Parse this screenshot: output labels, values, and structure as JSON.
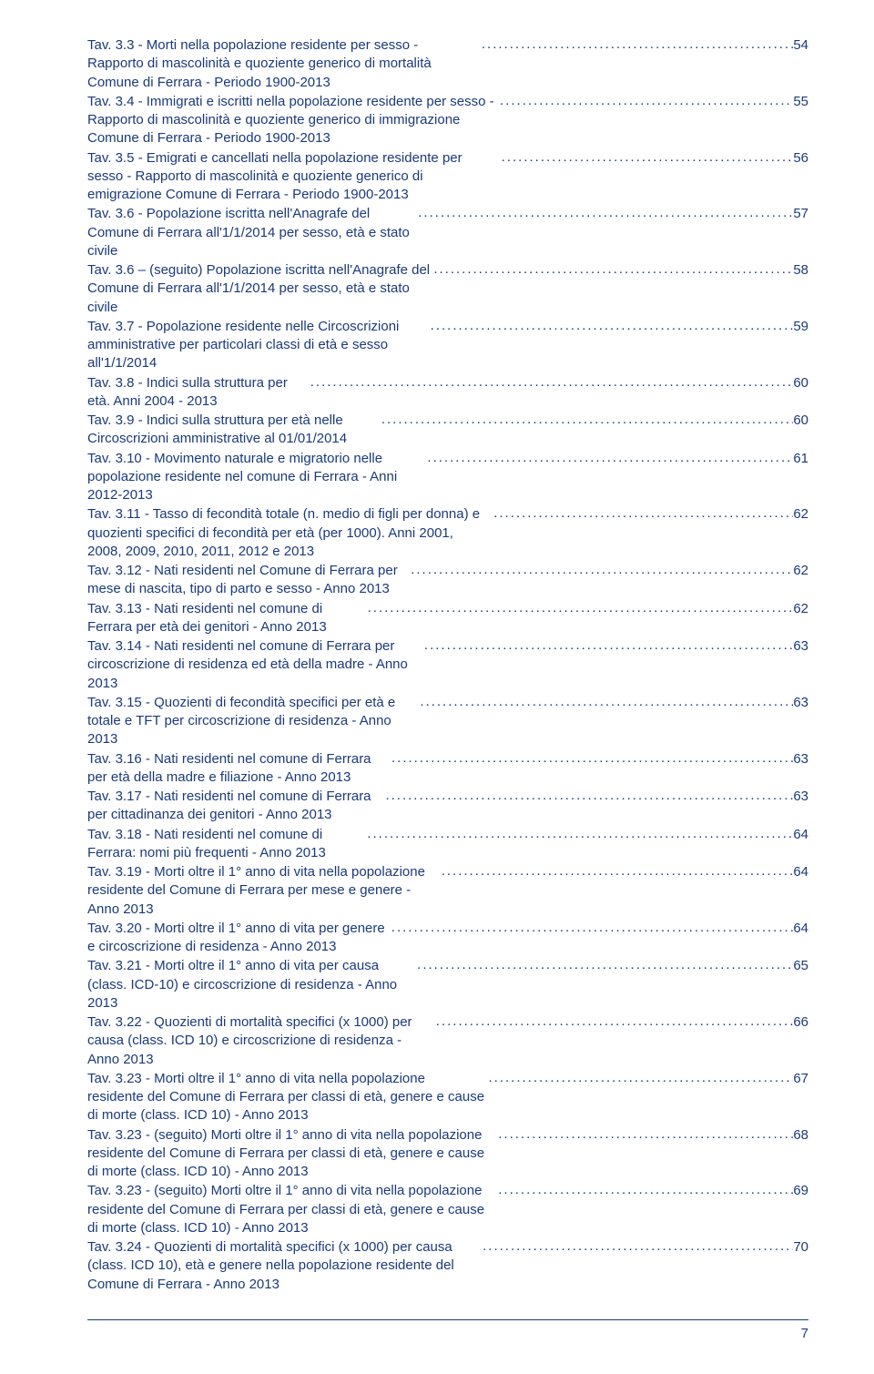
{
  "entries": [
    {
      "title": "Tav. 3.3 - Morti nella popolazione residente per sesso - Rapporto di mascolinità e quoziente generico di mortalità Comune di Ferrara - Periodo 1900-2013",
      "page": "54"
    },
    {
      "title": "Tav. 3.4 - Immigrati e iscritti nella popolazione residente per sesso - Rapporto di mascolinità e quoziente generico di immigrazione Comune di Ferrara - Periodo 1900-2013",
      "page": "55"
    },
    {
      "title": "Tav. 3.5 - Emigrati e cancellati nella popolazione residente per sesso - Rapporto di mascolinità e quoziente generico di emigrazione Comune di Ferrara - Periodo 1900-2013",
      "page": "56"
    },
    {
      "title": "Tav. 3.6 - Popolazione iscritta nell'Anagrafe del Comune di Ferrara all'1/1/2014 per sesso, età e stato civile",
      "page": "57"
    },
    {
      "title": "Tav. 3.6 – (seguito) Popolazione iscritta nell'Anagrafe del Comune di Ferrara all'1/1/2014 per sesso, età e stato civile",
      "page": "58"
    },
    {
      "title": "Tav. 3.7 - Popolazione residente nelle Circoscrizioni amministrative per particolari classi di età e sesso all'1/1/2014",
      "page": "59"
    },
    {
      "title": "Tav. 3.8 - Indici sulla struttura per età. Anni 2004 - 2013",
      "page": "60"
    },
    {
      "title": "Tav. 3.9 - Indici sulla struttura per età nelle Circoscrizioni amministrative al 01/01/2014",
      "page": "60"
    },
    {
      "title": "Tav. 3.10 - Movimento naturale e migratorio nelle popolazione residente nel comune di Ferrara - Anni 2012-2013",
      "page": "61"
    },
    {
      "title": "Tav. 3.11 - Tasso di fecondità totale (n. medio di figli per donna) e quozienti specifici di fecondità per età (per 1000). Anni 2001, 2008, 2009, 2010, 2011, 2012 e 2013",
      "page": "62"
    },
    {
      "title": "Tav. 3.12 - Nati residenti nel Comune di Ferrara per mese di nascita, tipo di parto e sesso - Anno 2013",
      "page": "62"
    },
    {
      "title": "Tav. 3.13 - Nati residenti nel comune di Ferrara per età dei genitori - Anno 2013",
      "page": "62"
    },
    {
      "title": "Tav. 3.14 - Nati residenti nel comune di Ferrara per circoscrizione di residenza ed età della madre - Anno 2013",
      "page": "63"
    },
    {
      "title": "Tav. 3.15 - Quozienti di fecondità specifici per età e totale e TFT per circoscrizione di residenza - Anno 2013",
      "page": "63"
    },
    {
      "title": "Tav. 3.16 - Nati residenti nel comune di Ferrara per età della madre e filiazione - Anno 2013",
      "page": "63"
    },
    {
      "title": "Tav. 3.17 - Nati residenti nel comune di Ferrara per cittadinanza dei genitori - Anno 2013",
      "page": "63"
    },
    {
      "title": "Tav. 3.18 - Nati residenti nel comune di Ferrara: nomi più frequenti - Anno 2013",
      "page": "64"
    },
    {
      "title": "Tav. 3.19 - Morti oltre il 1° anno di vita nella popolazione residente del Comune di Ferrara per mese e genere - Anno 2013",
      "page": "64"
    },
    {
      "title": "Tav. 3.20 - Morti oltre il 1° anno di vita per genere e circoscrizione di residenza - Anno 2013",
      "page": "64"
    },
    {
      "title": "Tav. 3.21 - Morti oltre il 1° anno di vita per causa (class. ICD-10) e circoscrizione di residenza - Anno 2013",
      "page": "65"
    },
    {
      "title": "Tav. 3.22 - Quozienti di mortalità specifici (x 1000) per causa (class. ICD 10) e circoscrizione di residenza - Anno 2013",
      "page": "66"
    },
    {
      "title": "Tav. 3.23 - Morti oltre il 1° anno di vita nella popolazione residente del Comune di Ferrara per classi di età, genere e cause di morte (class. ICD 10) - Anno 2013",
      "page": "67"
    },
    {
      "title": "Tav. 3.23 - (seguito) Morti oltre il 1° anno di vita nella popolazione residente del Comune di Ferrara per classi di età, genere e cause di morte (class. ICD 10) - Anno 2013",
      "page": "68"
    },
    {
      "title": "Tav. 3.23 - (seguito) Morti oltre il 1° anno di vita nella popolazione residente del Comune di Ferrara per classi di età, genere e cause di morte (class. ICD 10) - Anno 2013",
      "page": "69"
    },
    {
      "title": "Tav. 3.24 - Quozienti di mortalità specifici (x 1000) per causa (class. ICD 10), età e genere nella popolazione residente del Comune di Ferrara - Anno 2013",
      "page": "70"
    }
  ],
  "pageNumber": "7"
}
